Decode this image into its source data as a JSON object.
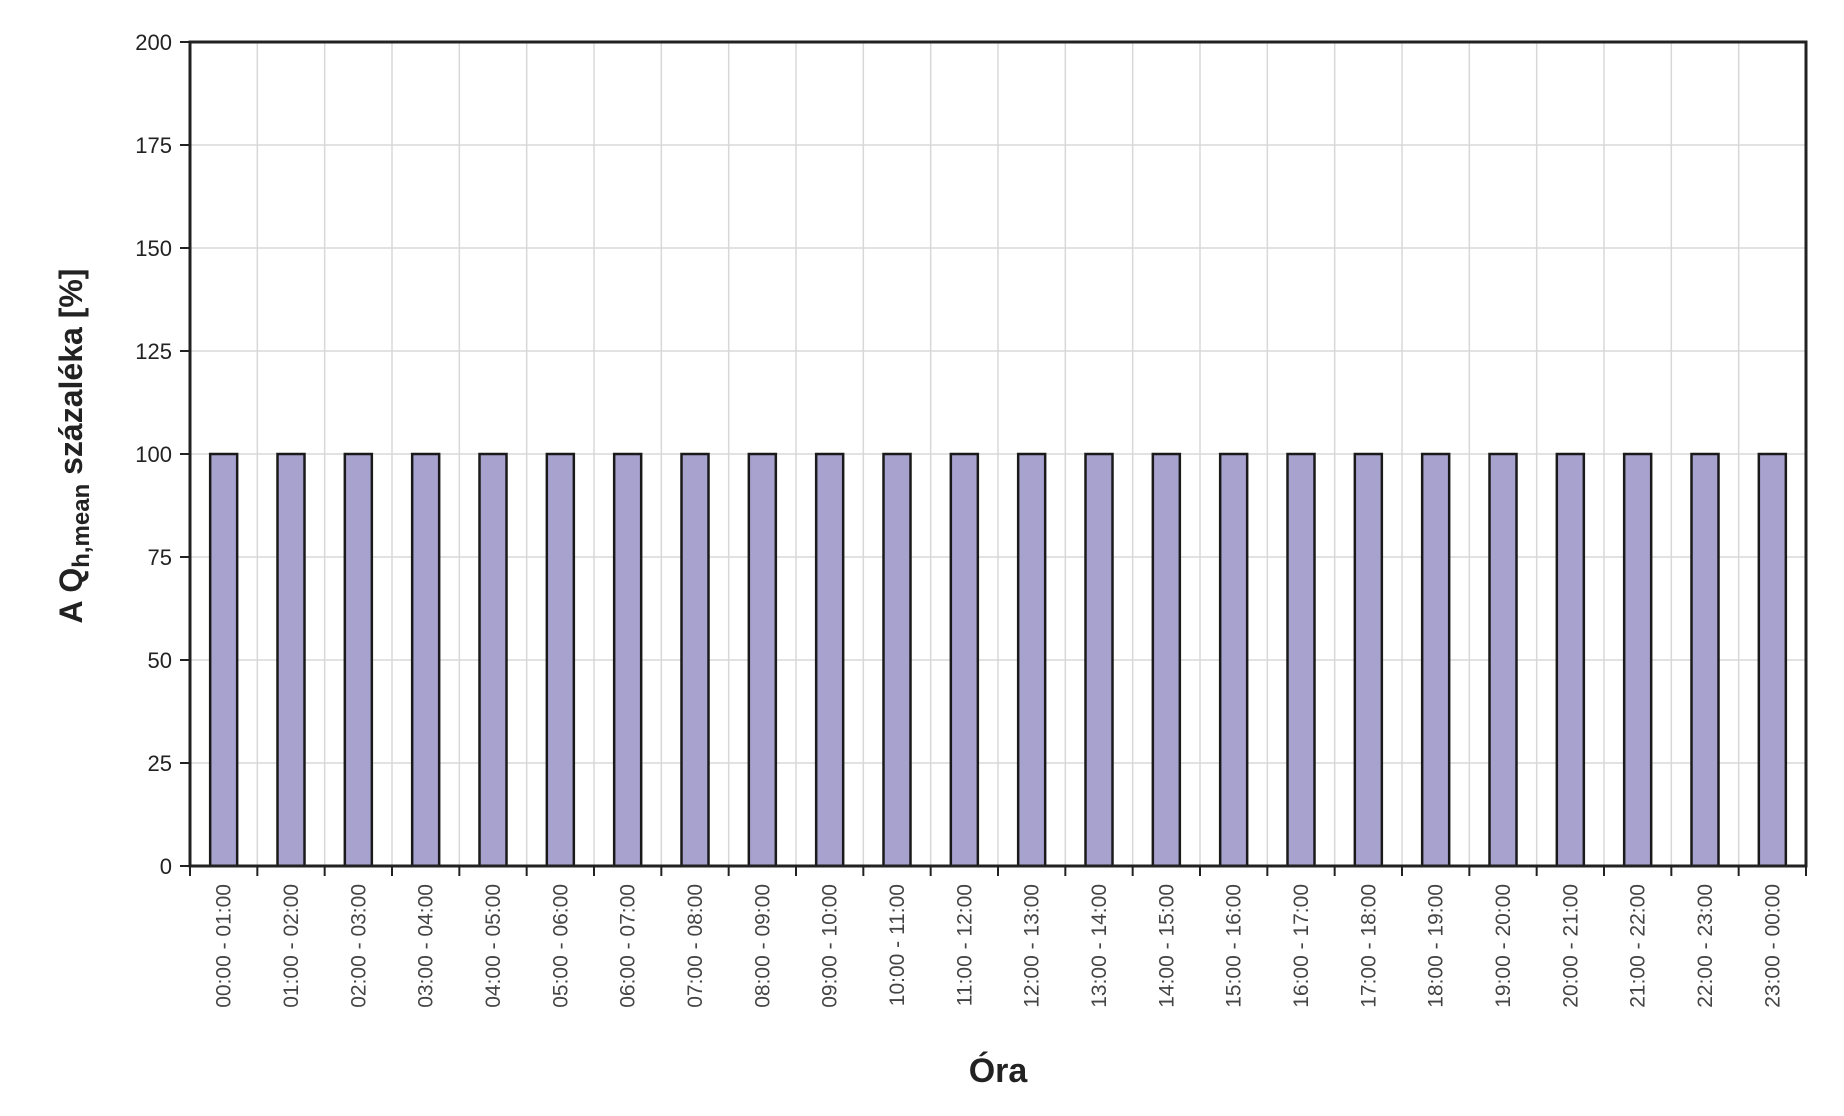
{
  "chart_data": {
    "type": "bar",
    "title": "",
    "xlabel": "Óra",
    "ylabel": {
      "prefix": "A  Q",
      "subscript": "h,mean",
      "suffix": "  százaléka  [%]"
    },
    "ylim": [
      0,
      200
    ],
    "yticks": [
      0,
      25,
      50,
      75,
      100,
      125,
      150,
      175,
      200
    ],
    "grid": true,
    "legend": "none",
    "colors": {
      "bar_fill": "#a8a2cf",
      "bar_stroke": "#1a1a1a",
      "grid": "#d8d8d8",
      "axis": "#222222"
    },
    "categories": [
      "00:00 - 01:00",
      "01:00 - 02:00",
      "02:00 - 03:00",
      "03:00 - 04:00",
      "04:00 - 05:00",
      "05:00 - 06:00",
      "06:00 - 07:00",
      "07:00 - 08:00",
      "08:00 - 09:00",
      "09:00 - 10:00",
      "10:00 - 11:00",
      "11:00 - 12:00",
      "12:00 - 13:00",
      "13:00 - 14:00",
      "14:00 - 15:00",
      "15:00 - 16:00",
      "16:00 - 17:00",
      "17:00 - 18:00",
      "18:00 - 19:00",
      "19:00 - 20:00",
      "20:00 - 21:00",
      "21:00 - 22:00",
      "22:00 - 23:00",
      "23:00 - 00:00"
    ],
    "values": [
      100,
      100,
      100,
      100,
      100,
      100,
      100,
      100,
      100,
      100,
      100,
      100,
      100,
      100,
      100,
      100,
      100,
      100,
      100,
      100,
      100,
      100,
      100,
      100
    ]
  }
}
